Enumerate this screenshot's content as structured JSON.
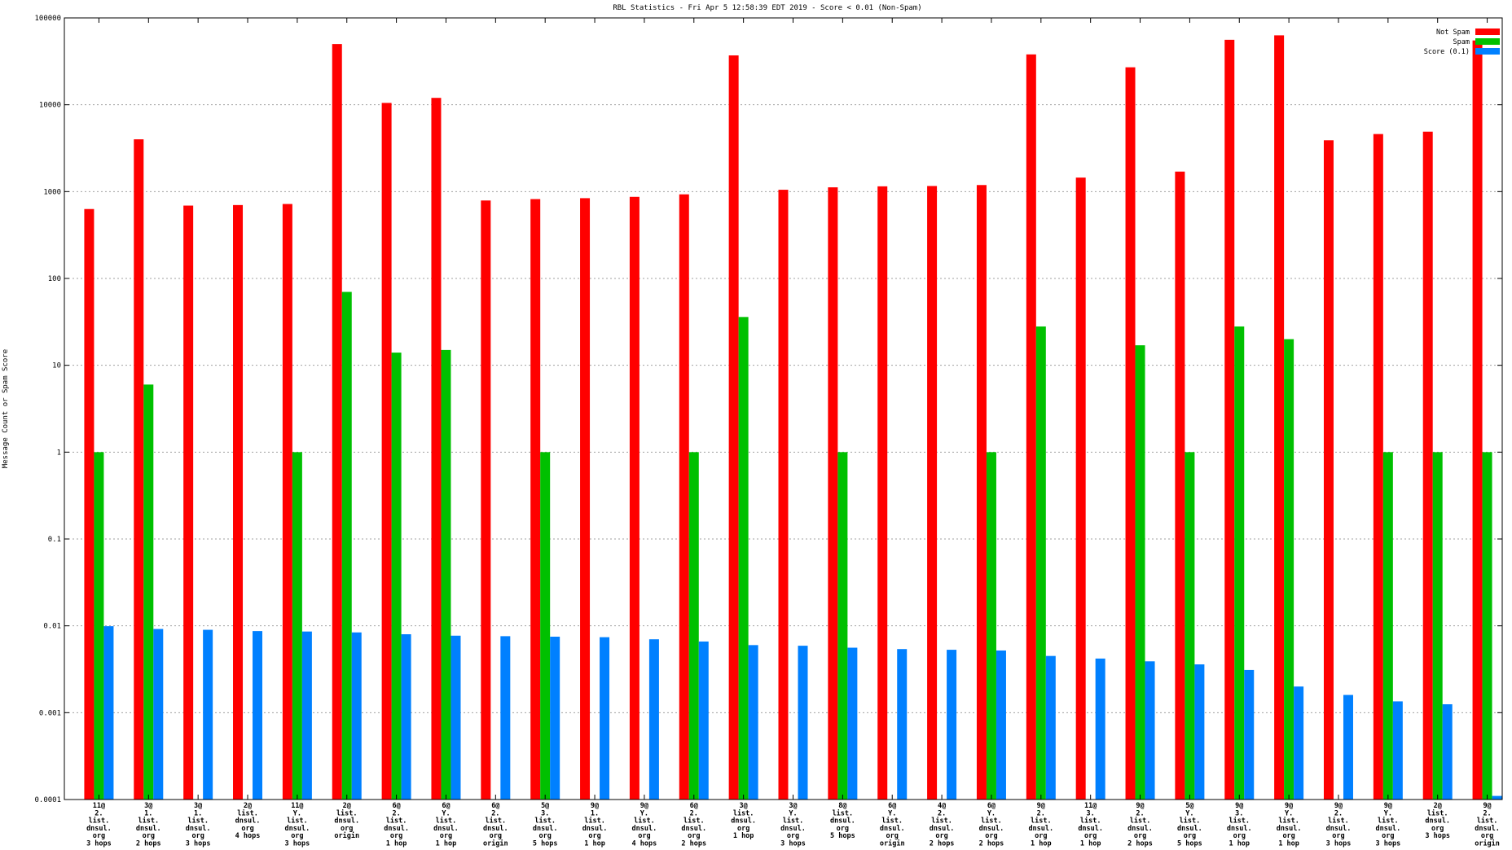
{
  "chart_data": {
    "type": "bar",
    "title": "RBL Statistics - Fri Apr  5 12:58:39 EDT 2019 - Score < 0.01 (Non-Spam)",
    "xlabel": "",
    "ylabel": "Message Count or Spam Score",
    "y_scale": "log",
    "ylim": [
      0.0001,
      100000
    ],
    "y_ticks": [
      "0.0001",
      "0.001",
      "0.01",
      "0.1",
      "1",
      "10",
      "100",
      "1000",
      "10000",
      "100000"
    ],
    "grid": true,
    "legend_position": "top-right",
    "categories": [
      [
        "11@",
        "2.",
        "list.",
        "dnsul.",
        "org",
        "3 hops"
      ],
      [
        "3@",
        "1.",
        "list.",
        "dnsul.",
        "org",
        "2 hops"
      ],
      [
        "3@",
        "1.",
        "list.",
        "dnsul.",
        "org",
        "3 hops"
      ],
      [
        "2@",
        "list.",
        "dnsul.",
        "org",
        "4 hops"
      ],
      [
        "11@",
        "Y.",
        "list.",
        "dnsul.",
        "org",
        "3 hops"
      ],
      [
        "2@",
        "list.",
        "dnsul.",
        "org",
        "origin"
      ],
      [
        "6@",
        "2.",
        "list.",
        "dnsul.",
        "org",
        "1 hop"
      ],
      [
        "6@",
        "Y.",
        "list.",
        "dnsul.",
        "org",
        "1 hop"
      ],
      [
        "6@",
        "2.",
        "list.",
        "dnsul.",
        "org",
        "origin"
      ],
      [
        "5@",
        "3.",
        "list.",
        "dnsul.",
        "org",
        "5 hops"
      ],
      [
        "9@",
        "1.",
        "list.",
        "dnsul.",
        "org",
        "1 hop"
      ],
      [
        "9@",
        "Y.",
        "list.",
        "dnsul.",
        "org",
        "4 hops"
      ],
      [
        "6@",
        "2.",
        "list.",
        "dnsul.",
        "org",
        "2 hops"
      ],
      [
        "3@",
        "list.",
        "dnsul.",
        "org",
        "1 hop"
      ],
      [
        "3@",
        "Y.",
        "list.",
        "dnsul.",
        "org",
        "3 hops"
      ],
      [
        "8@",
        "list.",
        "dnsul.",
        "org",
        "5 hops"
      ],
      [
        "6@",
        "Y.",
        "list.",
        "dnsul.",
        "org",
        "origin"
      ],
      [
        "4@",
        "2.",
        "list.",
        "dnsul.",
        "org",
        "2 hops"
      ],
      [
        "6@",
        "Y.",
        "list.",
        "dnsul.",
        "org",
        "2 hops"
      ],
      [
        "9@",
        "2.",
        "list.",
        "dnsul.",
        "org",
        "1 hop"
      ],
      [
        "11@",
        "3.",
        "list.",
        "dnsul.",
        "org",
        "1 hop"
      ],
      [
        "9@",
        "2.",
        "list.",
        "dnsul.",
        "org",
        "2 hops"
      ],
      [
        "5@",
        "Y.",
        "list.",
        "dnsul.",
        "org",
        "5 hops"
      ],
      [
        "9@",
        "3.",
        "list.",
        "dnsul.",
        "org",
        "1 hop"
      ],
      [
        "9@",
        "Y.",
        "list.",
        "dnsul.",
        "org",
        "1 hop"
      ],
      [
        "9@",
        "2.",
        "list.",
        "dnsul.",
        "org",
        "3 hops"
      ],
      [
        "9@",
        "Y.",
        "list.",
        "dnsul.",
        "org",
        "3 hops"
      ],
      [
        "2@",
        "list.",
        "dnsul.",
        "org",
        "3 hops"
      ],
      [
        "9@",
        "2.",
        "list.",
        "dnsul.",
        "org",
        "origin"
      ]
    ],
    "series": [
      {
        "name": "Not Spam",
        "color": "#ff0000",
        "values": [
          630,
          4000,
          690,
          700,
          720,
          50000,
          10500,
          12000,
          790,
          820,
          840,
          870,
          930,
          37000,
          1050,
          1120,
          1150,
          1160,
          1190,
          38000,
          1450,
          27000,
          1700,
          56000,
          63000,
          3900,
          4600,
          4900,
          55000
        ]
      },
      {
        "name": "Spam",
        "color": "#00c000",
        "values": [
          1,
          6,
          null,
          null,
          1,
          70,
          14,
          15,
          null,
          1,
          null,
          null,
          1,
          36,
          null,
          1,
          null,
          null,
          1,
          28,
          null,
          17,
          1,
          28,
          20,
          null,
          1,
          1,
          1
        ]
      },
      {
        "name": "Score (0.1)",
        "color": "#0080ff",
        "values": [
          0.0099,
          0.0092,
          0.009,
          0.0087,
          0.0086,
          0.0084,
          0.008,
          0.0077,
          0.0076,
          0.0075,
          0.0074,
          0.007,
          0.0066,
          0.006,
          0.0059,
          0.0056,
          0.0054,
          0.0053,
          0.0052,
          0.0045,
          0.0042,
          0.0039,
          0.0036,
          0.0031,
          0.002,
          0.0016,
          0.00135,
          0.00125,
          0.00011
        ]
      }
    ]
  }
}
